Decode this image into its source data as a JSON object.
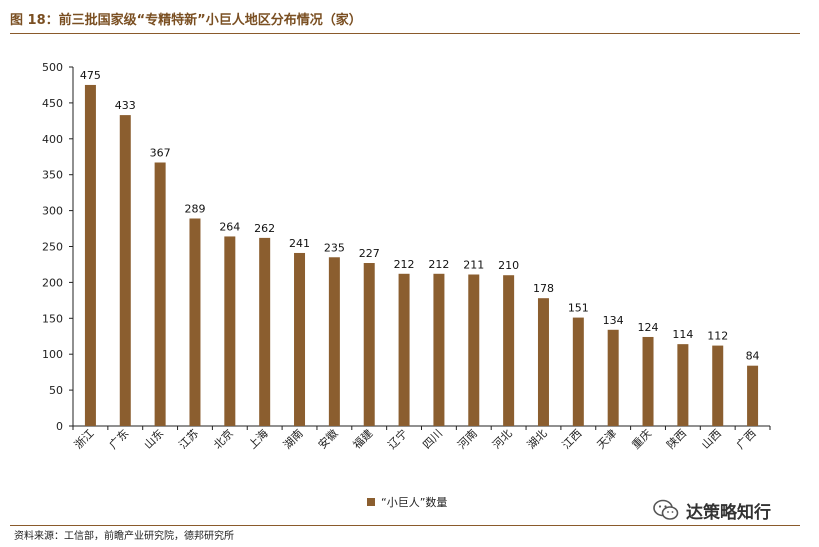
{
  "title": "图 18：前三批国家级“专精特新”小巨人地区分布情况（家）",
  "source": "资料来源：工信部，前瞻产业研究院，德邦研究所",
  "watermark": {
    "text": "达策略知行",
    "icon": "wechat-icon"
  },
  "chart_data": {
    "type": "bar",
    "categories": [
      "浙江",
      "广东",
      "山东",
      "江苏",
      "北京",
      "上海",
      "湖南",
      "安徽",
      "福建",
      "辽宁",
      "四川",
      "河南",
      "河北",
      "湖北",
      "江西",
      "天津",
      "重庆",
      "陕西",
      "山西",
      "广西"
    ],
    "series": [
      {
        "name": "“小巨人”数量",
        "values": [
          475,
          433,
          367,
          289,
          264,
          262,
          241,
          235,
          227,
          212,
          212,
          211,
          210,
          178,
          151,
          134,
          124,
          114,
          112,
          84
        ]
      }
    ],
    "ylim": [
      0,
      500
    ],
    "yticks": [
      "0",
      "50",
      "100",
      "150",
      "200",
      "250",
      "300",
      "350",
      "400",
      "450",
      "500"
    ],
    "grid": false,
    "legend_position": "bottom-center",
    "bar_color": "#8b5e2f",
    "axis_color": "#8a5a2b"
  }
}
